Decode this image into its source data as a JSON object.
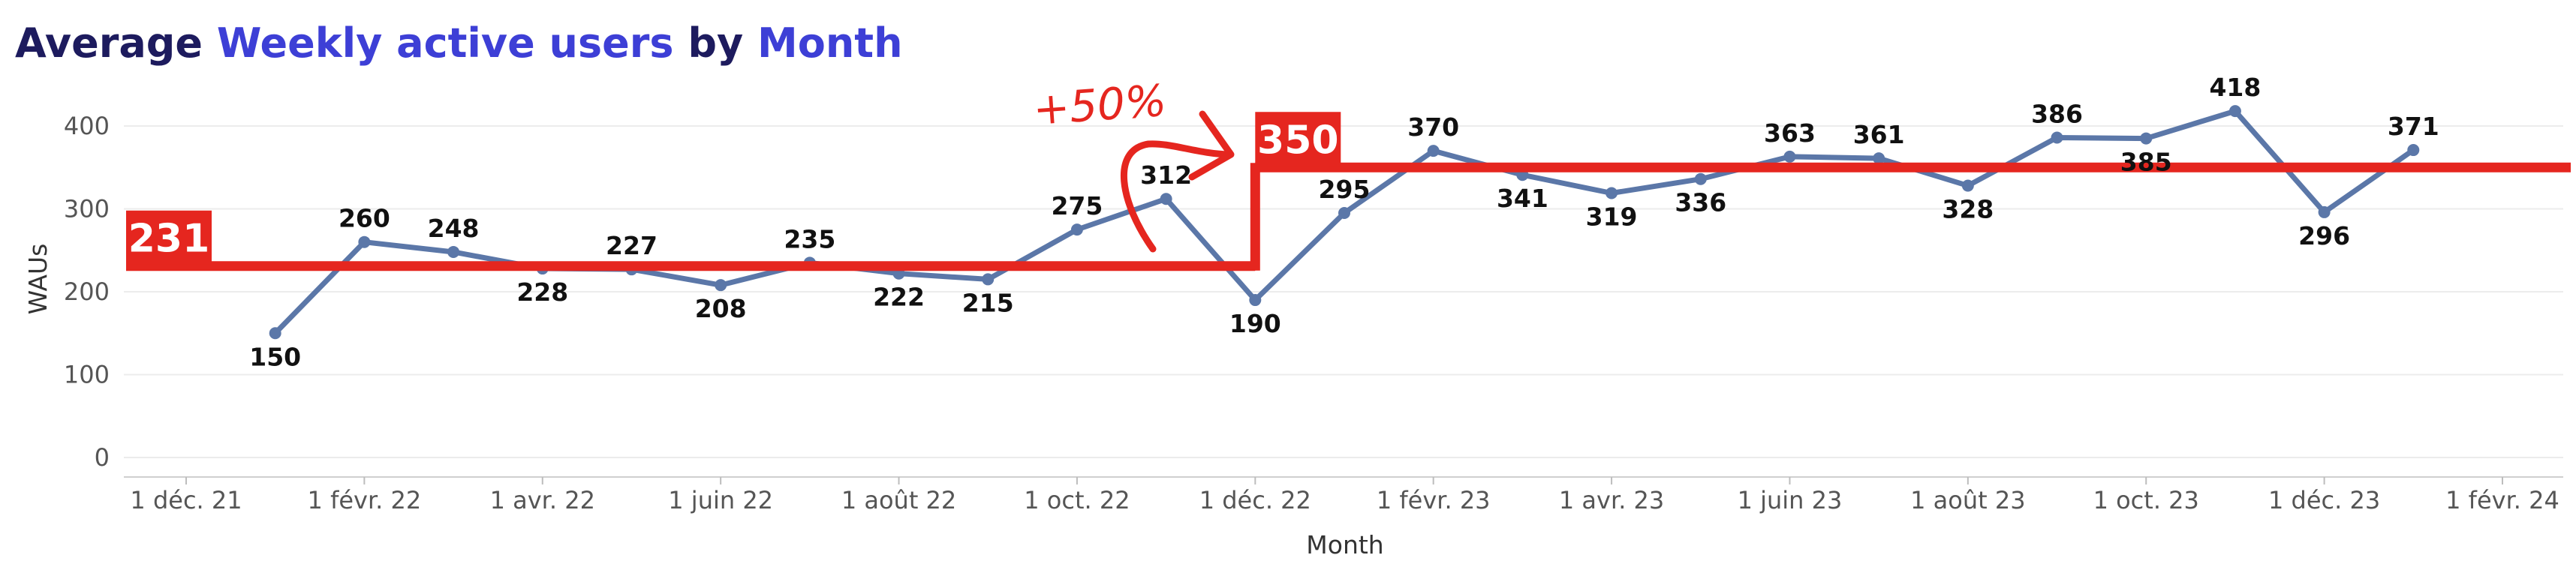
{
  "chart_data": {
    "type": "line",
    "title_parts": [
      {
        "text": "Average ",
        "highlight": false
      },
      {
        "text": "Weekly active users",
        "highlight": true
      },
      {
        "text": " by ",
        "highlight": false
      },
      {
        "text": "Month",
        "highlight": true
      }
    ],
    "xlabel": "Month",
    "ylabel": "WAUs",
    "ylim": [
      0,
      400
    ],
    "yticks": [
      0,
      100,
      200,
      300,
      400
    ],
    "grid": true,
    "x_tick_labels": [
      "1 déc. 21",
      "1 févr. 22",
      "1 avr. 22",
      "1 juin 22",
      "1 août 22",
      "1 oct. 22",
      "1 déc. 22",
      "1 févr. 23",
      "1 avr. 23",
      "1 juin 23",
      "1 août 23",
      "1 oct. 23",
      "1 déc. 23",
      "1 févr. 24"
    ],
    "series": [
      {
        "name": "Weekly active users",
        "color": "#5b77a8",
        "x": [
          "2022-01",
          "2022-02",
          "2022-03",
          "2022-04",
          "2022-05",
          "2022-06",
          "2022-07",
          "2022-08",
          "2022-09",
          "2022-10",
          "2022-11",
          "2022-12",
          "2023-01",
          "2023-02",
          "2023-03",
          "2023-04",
          "2023-05",
          "2023-06",
          "2023-07",
          "2023-08",
          "2023-09",
          "2023-10",
          "2023-11",
          "2023-12",
          "2024-01"
        ],
        "values": [
          150,
          260,
          248,
          228,
          227,
          208,
          235,
          222,
          215,
          275,
          312,
          190,
          295,
          370,
          341,
          319,
          336,
          363,
          361,
          328,
          386,
          385,
          418,
          296,
          371
        ],
        "label_positions": [
          "below",
          "above",
          "above",
          "below",
          "above",
          "below",
          "above",
          "below",
          "below",
          "above",
          "above",
          "below",
          "above",
          "above",
          "below",
          "below",
          "below",
          "above",
          "above",
          "below",
          "above",
          "below",
          "above",
          "below",
          "above"
        ]
      }
    ],
    "reference_lines": [
      {
        "label": "231",
        "value": 231,
        "from": "2021-12",
        "to": "2022-12"
      },
      {
        "label": "350",
        "value": 350,
        "from": "2022-12",
        "to": "2024-02"
      }
    ],
    "annotation": {
      "text": "+50%",
      "color": "#e5261f"
    }
  }
}
